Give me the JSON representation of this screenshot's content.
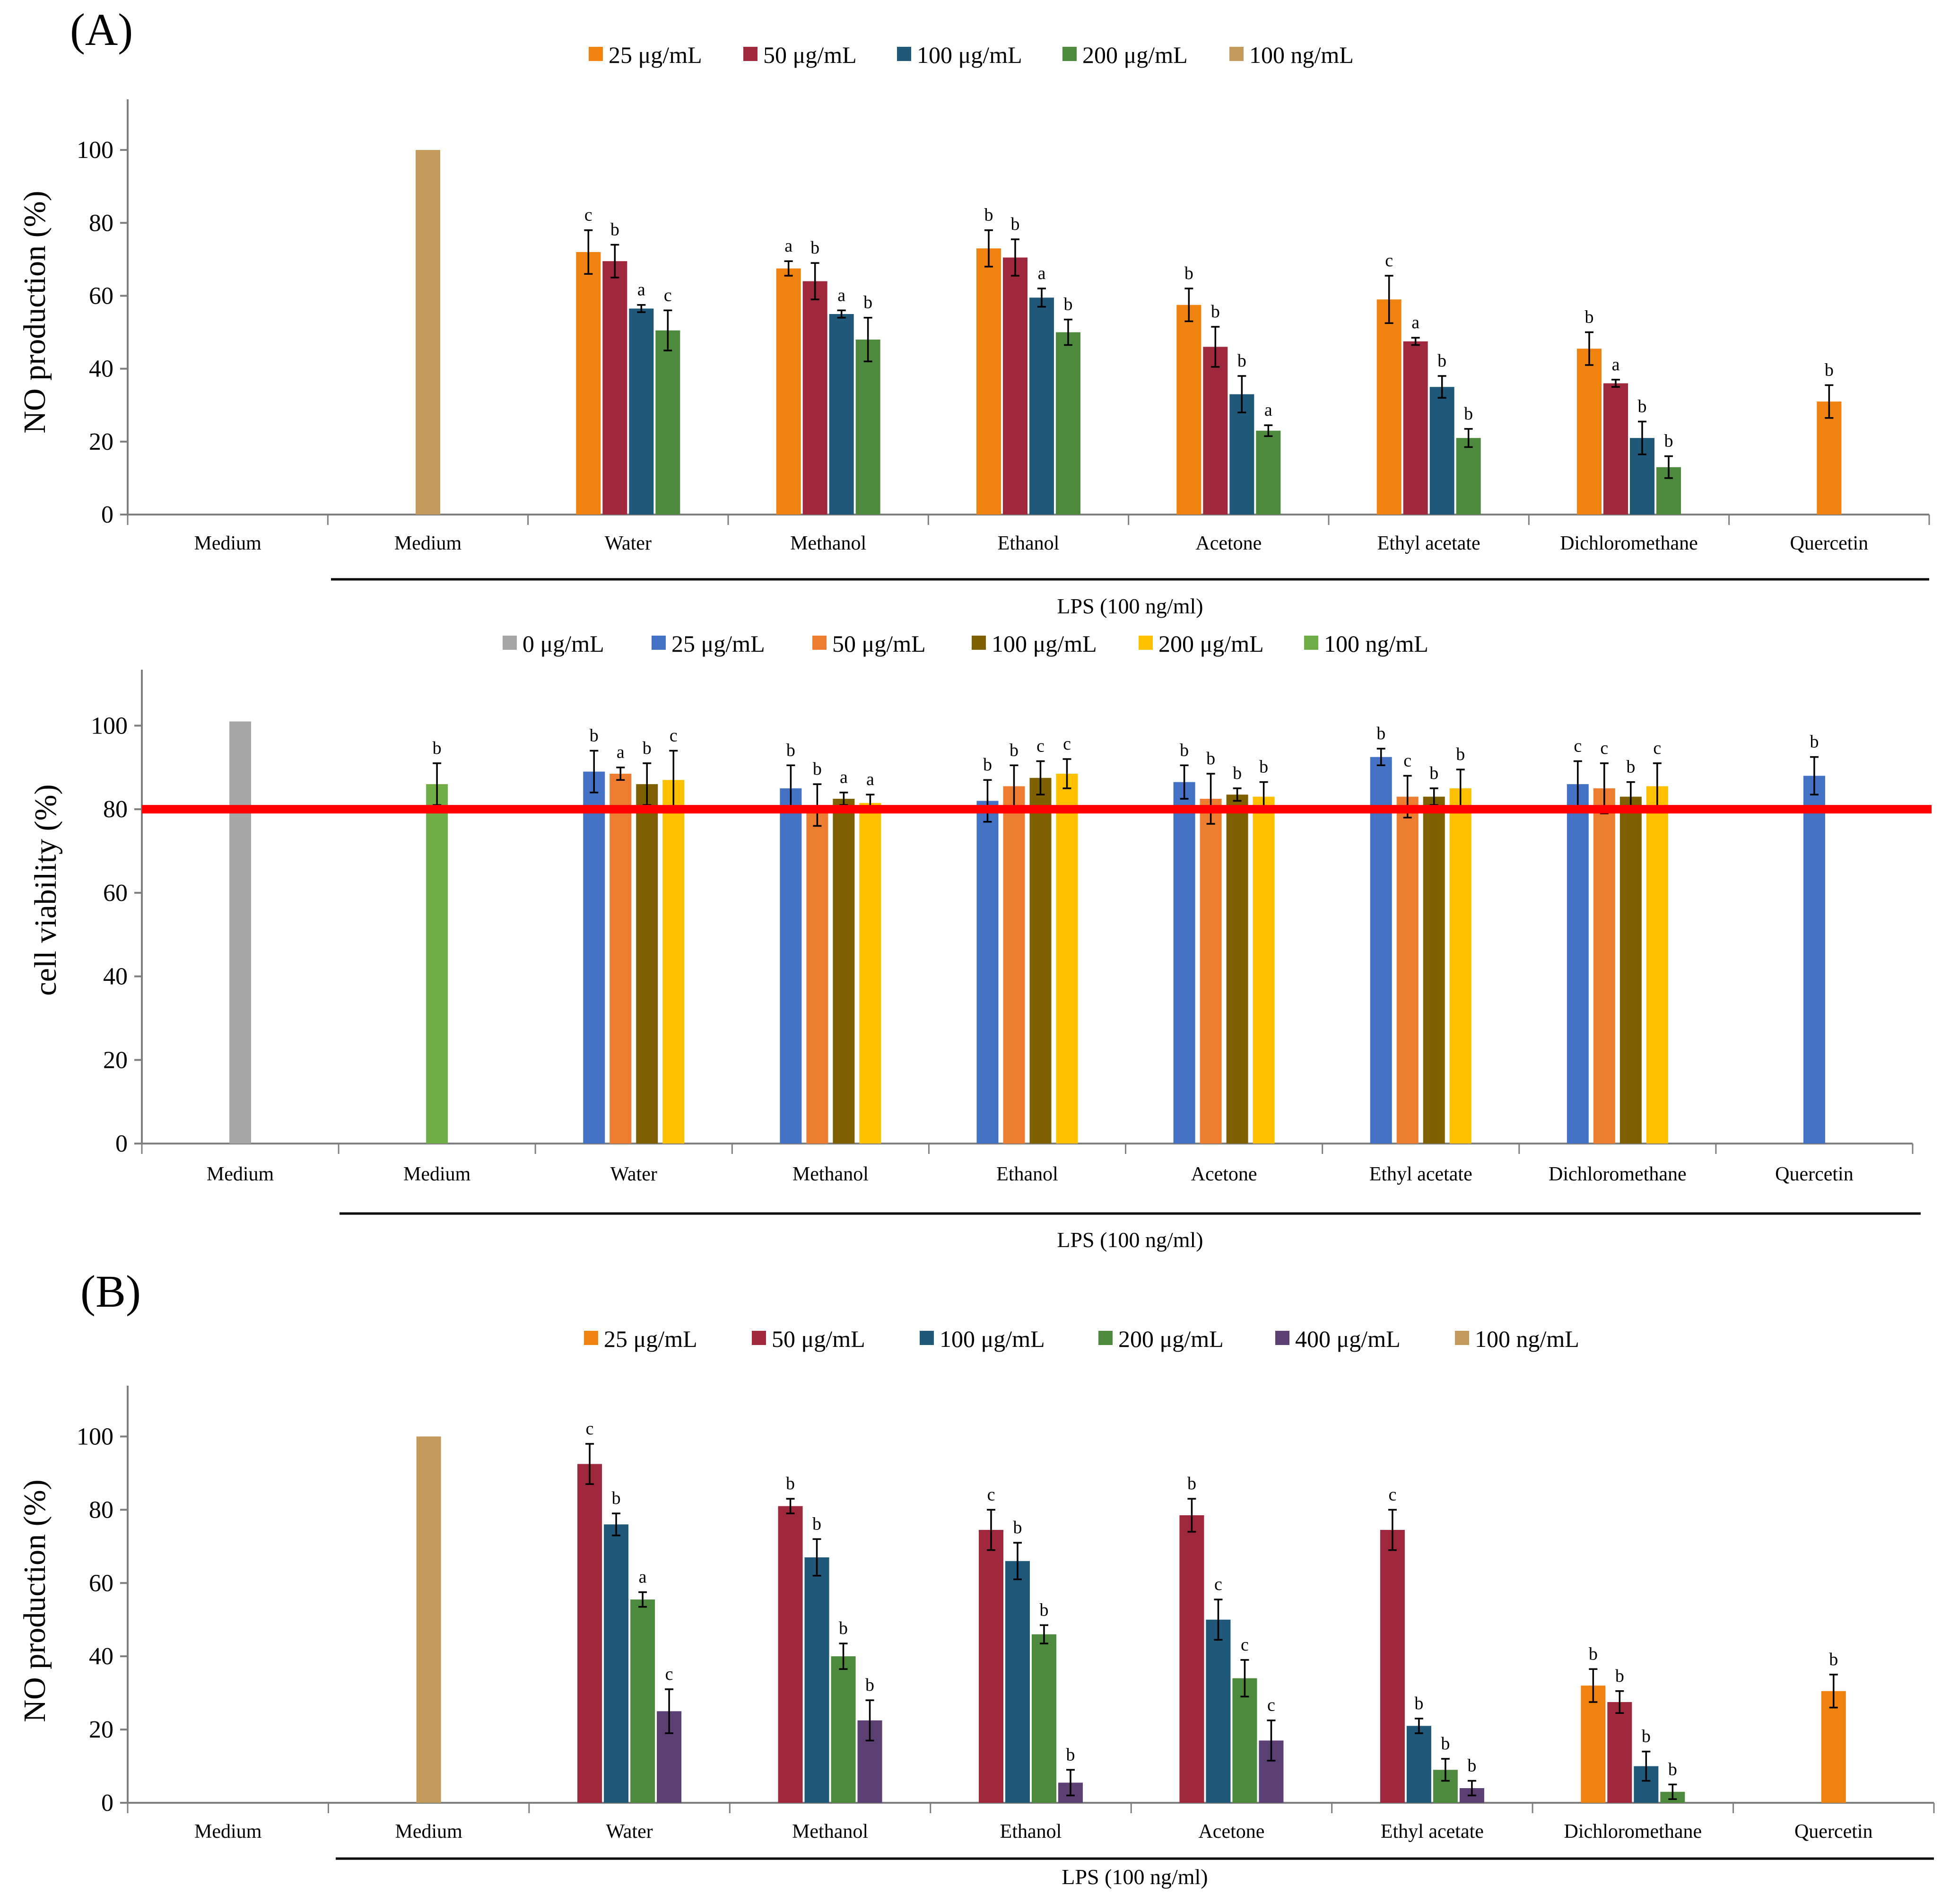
{
  "panels": {
    "a_label": "(A)",
    "b_label": "(B)"
  },
  "chart_data": [
    {
      "type": "bar",
      "categories": [
        "Medium",
        "Medium",
        "Water",
        "Methanol",
        "Ethanol",
        "Acetone",
        "Ethyl acetate",
        "Dichloromethane",
        "Quercetin"
      ],
      "group_label": "LPS (100 ng/ml)",
      "ylabel": "NO production (%)",
      "ylim": [
        0,
        110
      ],
      "yticks": [
        0,
        20,
        40,
        60,
        80,
        100
      ],
      "grid": false,
      "legend_position": "top",
      "series": [
        {
          "name": "25 μg/mL",
          "color": "#F0820F",
          "values": [
            null,
            null,
            72,
            67.5,
            73,
            57.5,
            59,
            45.5,
            31
          ],
          "errors": [
            null,
            null,
            6,
            2,
            5,
            4.5,
            6.5,
            4.5,
            4.5
          ],
          "letters": [
            null,
            null,
            "c",
            "a",
            "b",
            "b",
            "c",
            "b",
            "b"
          ]
        },
        {
          "name": "50 μg/mL",
          "color": "#A0283C",
          "values": [
            null,
            null,
            69.5,
            64,
            70.5,
            46,
            47.5,
            36,
            null
          ],
          "errors": [
            null,
            null,
            4.5,
            5,
            5,
            5.5,
            1,
            1,
            null
          ],
          "letters": [
            null,
            null,
            "b",
            "b",
            "b",
            "b",
            "a",
            "a",
            null
          ]
        },
        {
          "name": "100 μg/mL",
          "color": "#1F5878",
          "values": [
            null,
            null,
            56.5,
            55,
            59.5,
            33,
            35,
            21,
            null
          ],
          "errors": [
            null,
            null,
            1,
            1,
            2.5,
            5,
            3,
            4.5,
            null
          ],
          "letters": [
            null,
            null,
            "a",
            "a",
            "a",
            "b",
            "b",
            "b",
            null
          ]
        },
        {
          "name": "200 μg/mL",
          "color": "#4E8A3E",
          "values": [
            null,
            null,
            50.5,
            48,
            50,
            23,
            21,
            13,
            null
          ],
          "errors": [
            null,
            null,
            5.5,
            6,
            3.5,
            1.5,
            2.5,
            3,
            null
          ],
          "letters": [
            null,
            null,
            "c",
            "b",
            "b",
            "a",
            "b",
            "b",
            null
          ]
        },
        {
          "name": "100 ng/mL",
          "color": "#C49A5A",
          "values": [
            null,
            100,
            null,
            null,
            null,
            null,
            null,
            null,
            null
          ],
          "errors": [
            null,
            null,
            null,
            null,
            null,
            null,
            null,
            null,
            null
          ],
          "letters": [
            null,
            null,
            null,
            null,
            null,
            null,
            null,
            null,
            null
          ]
        }
      ]
    },
    {
      "type": "bar",
      "categories": [
        "Medium",
        "Medium",
        "Water",
        "Methanol",
        "Ethanol",
        "Acetone",
        "Ethyl acetate",
        "Dichloromethane",
        "Quercetin"
      ],
      "group_label": "LPS (100 ng/ml)",
      "ylabel": "cell viability (%)",
      "ylim": [
        0,
        110
      ],
      "yticks": [
        0,
        20,
        40,
        60,
        80,
        100
      ],
      "grid": false,
      "legend_position": "top",
      "reference_line": {
        "y": 80,
        "color": "#FF0000"
      },
      "series": [
        {
          "name": "0 μg/mL",
          "color": "#A6A6A6",
          "values": [
            101,
            null,
            null,
            null,
            null,
            null,
            null,
            null,
            null
          ],
          "errors": [
            null,
            null,
            null,
            null,
            null,
            null,
            null,
            null,
            null
          ],
          "letters": [
            null,
            null,
            null,
            null,
            null,
            null,
            null,
            null,
            null
          ]
        },
        {
          "name": "25 μg/mL",
          "color": "#4472C4",
          "values": [
            null,
            null,
            89,
            85,
            82,
            86.5,
            92.5,
            86,
            88
          ],
          "errors": [
            null,
            null,
            5,
            5.5,
            5,
            4,
            2,
            5.5,
            4.5
          ],
          "letters": [
            null,
            null,
            "b",
            "b",
            "b",
            "b",
            "b",
            "c",
            "b"
          ]
        },
        {
          "name": "50 μg/mL",
          "color": "#ED7D31",
          "values": [
            null,
            null,
            88.5,
            81,
            85.5,
            82.5,
            83,
            85,
            null
          ],
          "errors": [
            null,
            null,
            1.5,
            5,
            5,
            6,
            5,
            6,
            null
          ],
          "letters": [
            null,
            null,
            "a",
            "b",
            "b",
            "b",
            "c",
            "c",
            null
          ]
        },
        {
          "name": "100 μg/mL",
          "color": "#7F6000",
          "values": [
            null,
            null,
            86,
            82.5,
            87.5,
            83.5,
            83,
            83,
            null
          ],
          "errors": [
            null,
            null,
            5,
            1.5,
            4,
            1.5,
            2,
            3.5,
            null
          ],
          "letters": [
            null,
            null,
            "b",
            "a",
            "c",
            "b",
            "b",
            "b",
            null
          ]
        },
        {
          "name": "200 μg/mL",
          "color": "#FFC000",
          "values": [
            null,
            null,
            87,
            81.5,
            88.5,
            83,
            85,
            85.5,
            null
          ],
          "errors": [
            null,
            null,
            7,
            2,
            3.5,
            3.5,
            4.5,
            5.5,
            null
          ],
          "letters": [
            null,
            null,
            "c",
            "a",
            "c",
            "b",
            "b",
            "c",
            null
          ]
        },
        {
          "name": "100 ng/mL",
          "color": "#70AD47",
          "values": [
            null,
            86,
            null,
            null,
            null,
            null,
            null,
            null,
            null
          ],
          "errors": [
            null,
            5,
            null,
            null,
            null,
            null,
            null,
            null,
            null
          ],
          "letters": [
            null,
            "b",
            null,
            null,
            null,
            null,
            null,
            null,
            null
          ]
        }
      ]
    },
    {
      "type": "bar",
      "categories": [
        "Medium",
        "Medium",
        "Water",
        "Methanol",
        "Ethanol",
        "Acetone",
        "Ethyl acetate",
        "Dichloromethane",
        "Quercetin"
      ],
      "group_label": "LPS (100 ng/ml)",
      "ylabel": "NO production (%)",
      "ylim": [
        0,
        110
      ],
      "yticks": [
        0,
        20,
        40,
        60,
        80,
        100
      ],
      "grid": false,
      "legend_position": "top",
      "series": [
        {
          "name": "25 μg/mL",
          "color": "#F0820F",
          "values": [
            null,
            null,
            null,
            null,
            null,
            null,
            null,
            32,
            30.5
          ],
          "errors": [
            null,
            null,
            null,
            null,
            null,
            null,
            null,
            4.5,
            4.5
          ],
          "letters": [
            null,
            null,
            null,
            null,
            null,
            null,
            null,
            "b",
            "b"
          ]
        },
        {
          "name": "50 μg/mL",
          "color": "#A0283C",
          "values": [
            null,
            null,
            92.5,
            81,
            74.5,
            78.5,
            74.5,
            27.5,
            null
          ],
          "errors": [
            null,
            null,
            5.5,
            2,
            5.5,
            4.5,
            5.5,
            3,
            null
          ],
          "letters": [
            null,
            null,
            "c",
            "b",
            "c",
            "b",
            "c",
            "b",
            null
          ]
        },
        {
          "name": "100 μg/mL",
          "color": "#1F5878",
          "values": [
            null,
            null,
            76,
            67,
            66,
            50,
            21,
            10,
            null
          ],
          "errors": [
            null,
            null,
            3,
            5,
            5,
            5.5,
            2,
            4,
            null
          ],
          "letters": [
            null,
            null,
            "b",
            "b",
            "b",
            "c",
            "b",
            "b",
            null
          ]
        },
        {
          "name": "200 μg/mL",
          "color": "#4E8A3E",
          "values": [
            null,
            null,
            55.5,
            40,
            46,
            34,
            9,
            3,
            null
          ],
          "errors": [
            null,
            null,
            2,
            3.5,
            2.5,
            5,
            3,
            2,
            null
          ],
          "letters": [
            null,
            null,
            "a",
            "b",
            "b",
            "c",
            "b",
            "b",
            null
          ]
        },
        {
          "name": "400 μg/mL",
          "color": "#5C3F73",
          "values": [
            null,
            null,
            25,
            22.5,
            5.5,
            17,
            4,
            null,
            null
          ],
          "errors": [
            null,
            null,
            6,
            5.5,
            3.5,
            5.5,
            2,
            null,
            null
          ],
          "letters": [
            null,
            null,
            "c",
            "b",
            "b",
            "c",
            "b",
            null,
            null
          ]
        },
        {
          "name": "100 ng/mL",
          "color": "#C49A5A",
          "values": [
            null,
            100,
            null,
            null,
            null,
            null,
            null,
            null,
            null
          ],
          "errors": [
            null,
            null,
            null,
            null,
            null,
            null,
            null,
            null,
            null
          ],
          "letters": [
            null,
            null,
            null,
            null,
            null,
            null,
            null,
            null,
            null
          ]
        }
      ]
    }
  ]
}
